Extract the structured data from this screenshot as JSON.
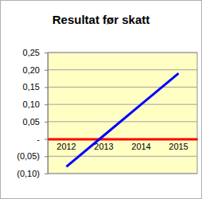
{
  "chart_data": {
    "type": "line",
    "title": "Resultat før skatt",
    "categories": [
      "2012",
      "2013",
      "2014",
      "2015"
    ],
    "values": [
      -0.08,
      0.01,
      0.1,
      0.19
    ],
    "color": "#0000ff",
    "ylim": [
      -0.1,
      0.25
    ],
    "yticks": [
      {
        "value": 0.25,
        "label": "0,25"
      },
      {
        "value": 0.2,
        "label": "0,20"
      },
      {
        "value": 0.15,
        "label": "0,15"
      },
      {
        "value": 0.1,
        "label": "0,10"
      },
      {
        "value": 0.05,
        "label": "0,05"
      },
      {
        "value": 0,
        "label": "-"
      },
      {
        "value": -0.05,
        "label": "(0,05)"
      },
      {
        "value": -0.1,
        "label": "(0,10)"
      }
    ],
    "grid": true
  }
}
